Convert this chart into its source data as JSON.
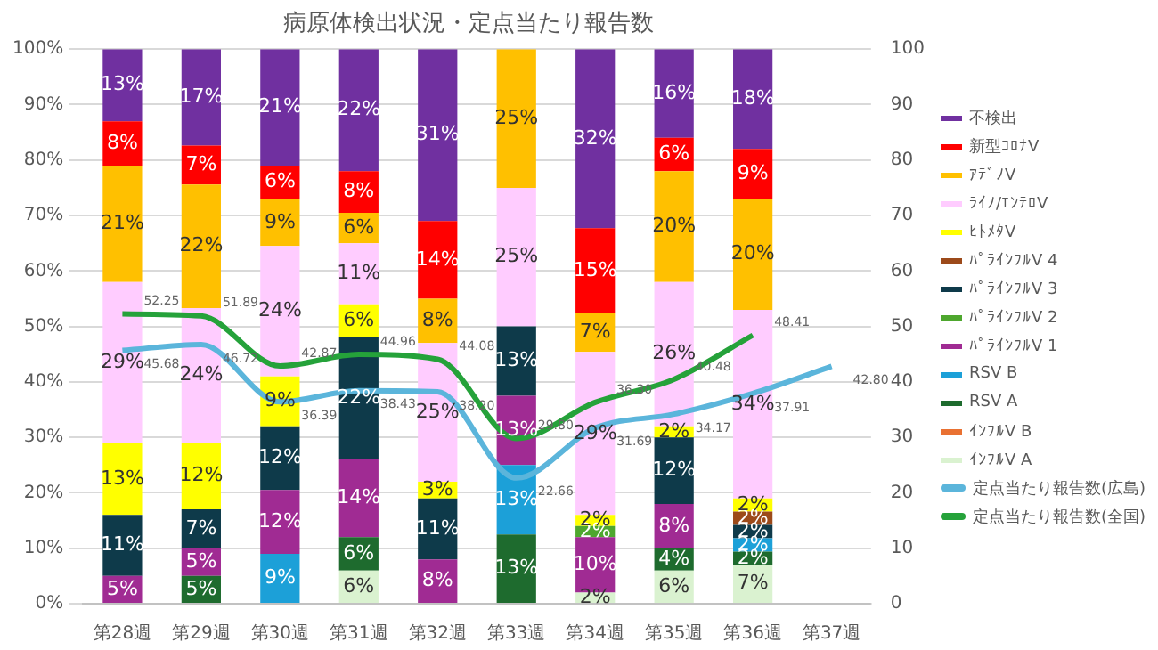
{
  "chart_data": {
    "type": "bar",
    "stacked": true,
    "title": "病原体検出状況・定点当たり報告数",
    "categories": [
      "第28週",
      "第29週",
      "第30週",
      "第31週",
      "第32週",
      "第33週",
      "第34週",
      "第35週",
      "第36週",
      "第37週"
    ],
    "series": [
      {
        "name": "ｲﾝﾌﾙV A",
        "color": "#daf2d0",
        "values": [
          null,
          null,
          null,
          6,
          null,
          null,
          2,
          6,
          7,
          null
        ],
        "value_labels": [
          null,
          null,
          null,
          "6%",
          null,
          null,
          "2%",
          "6%",
          "7%",
          null
        ]
      },
      {
        "name": "ｲﾝﾌﾙV B",
        "color": "#e97132",
        "values": [
          null,
          null,
          null,
          null,
          null,
          null,
          null,
          null,
          null,
          null
        ],
        "value_labels": [
          null,
          null,
          null,
          null,
          null,
          null,
          null,
          null,
          null,
          null
        ]
      },
      {
        "name": "RSV A",
        "color": "#1e6b2e",
        "values": [
          null,
          5,
          null,
          6,
          null,
          12.5,
          null,
          4,
          2.4,
          null
        ],
        "value_labels": [
          null,
          "5%",
          null,
          "6%",
          null,
          "13%",
          null,
          "4%",
          "2%",
          null
        ]
      },
      {
        "name": "RSV B",
        "color": "#1ca0d8",
        "values": [
          null,
          null,
          9,
          null,
          null,
          12.5,
          null,
          null,
          2.4,
          null
        ],
        "value_labels": [
          null,
          null,
          "9%",
          null,
          null,
          "13%",
          null,
          null,
          "2%",
          null
        ]
      },
      {
        "name": "ﾊﾟﾗｲﾝﾌﾙV 1",
        "color": "#a02b93",
        "values": [
          5,
          5,
          11.5,
          14,
          8,
          12.5,
          10,
          8,
          null,
          null
        ],
        "value_labels": [
          "5%",
          "5%",
          "12%",
          "14%",
          "8%",
          "13%",
          "10%",
          "8%",
          null,
          null
        ]
      },
      {
        "name": "ﾊﾟﾗｲﾝﾌﾙV 2",
        "color": "#4ea72e",
        "values": [
          null,
          null,
          null,
          null,
          null,
          null,
          2,
          null,
          null,
          null
        ],
        "value_labels": [
          null,
          null,
          null,
          null,
          null,
          null,
          "2%",
          null,
          null,
          null
        ]
      },
      {
        "name": "ﾊﾟﾗｲﾝﾌﾙV 3",
        "color": "#0e3a4a",
        "values": [
          11,
          7,
          11.5,
          22,
          11,
          12.5,
          null,
          12,
          2.4,
          null
        ],
        "value_labels": [
          "11%",
          "7%",
          "12%",
          "22%",
          "11%",
          "13%",
          null,
          "12%",
          "2%",
          null
        ]
      },
      {
        "name": "ﾊﾟﾗｲﾝﾌﾙV 4",
        "color": "#9c4a1a",
        "values": [
          null,
          null,
          null,
          null,
          null,
          null,
          null,
          null,
          2.4,
          null
        ],
        "value_labels": [
          null,
          null,
          null,
          null,
          null,
          null,
          null,
          null,
          "2%",
          null
        ]
      },
      {
        "name": "ﾋﾄﾒﾀV",
        "color": "#ffff00",
        "values": [
          13,
          12,
          9,
          6,
          3,
          null,
          2,
          2,
          2.4,
          null
        ],
        "value_labels": [
          "13%",
          "12%",
          "9%",
          "6%",
          "3%",
          null,
          "2%",
          "2%",
          "2%",
          null
        ]
      },
      {
        "name": "ﾗｲﾉ/ｴﾝﾃﾛV",
        "color": "#ffccff",
        "values": [
          29,
          24.3,
          23.5,
          11,
          25,
          25,
          29.4,
          26,
          34,
          null
        ],
        "value_labels": [
          "29%",
          "24%",
          "24%",
          "11%",
          "25%",
          "25%",
          "29%",
          "26%",
          "34%",
          null
        ]
      },
      {
        "name": "ｱﾃﾞﾉV",
        "color": "#ffc000",
        "values": [
          21,
          22.3,
          8.5,
          5.5,
          8,
          25,
          7,
          20,
          20,
          null
        ],
        "value_labels": [
          "21%",
          "22%",
          "9%",
          "6%",
          "8%",
          "25%",
          "7%",
          "20%",
          "20%",
          null
        ]
      },
      {
        "name": "新型ｺﾛﾅV",
        "color": "#ff0000",
        "values": [
          8,
          7,
          6,
          7.5,
          14,
          null,
          15.3,
          6,
          9,
          null
        ],
        "value_labels": [
          "8%",
          "7%",
          "6%",
          "8%",
          "14%",
          null,
          "15%",
          "6%",
          "9%",
          null
        ]
      },
      {
        "name": "不検出",
        "color": "#7030a0",
        "values": [
          13,
          17.4,
          21,
          22,
          31,
          null,
          32.3,
          16,
          18,
          null
        ],
        "value_labels": [
          "13%",
          "17%",
          "21%",
          "22%",
          "31%",
          null,
          "32%",
          "16%",
          "18%",
          null
        ]
      },
      {
        "name": "定点当たり報告数(広島)",
        "type": "line",
        "axis": "y2",
        "color": "#5bb5db",
        "values": [
          45.68,
          46.72,
          36.39,
          38.43,
          38.2,
          22.66,
          31.69,
          34.17,
          37.91,
          42.8
        ],
        "value_labels": [
          "45.68",
          "46.72",
          "36.39",
          "38.43",
          "38.20",
          "22.66",
          "31.69",
          "34.17",
          "37.91",
          "42.80"
        ]
      },
      {
        "name": "定点当たり報告数(全国)",
        "type": "line",
        "axis": "y2",
        "color": "#25a23a",
        "values": [
          52.25,
          51.89,
          42.87,
          44.96,
          44.08,
          29.8,
          36.3,
          40.48,
          48.41,
          null
        ],
        "value_labels": [
          "52.25",
          "51.89",
          "42.87",
          "44.96",
          "44.08",
          "29.80",
          "36.30",
          "40.48",
          "48.41",
          null
        ]
      }
    ],
    "ylim": [
      0,
      100
    ],
    "yticks": [
      {
        "value": 0,
        "label": "0%"
      },
      {
        "value": 10,
        "label": "10%"
      },
      {
        "value": 20,
        "label": "20%"
      },
      {
        "value": 30,
        "label": "30%"
      },
      {
        "value": 40,
        "label": "40%"
      },
      {
        "value": 50,
        "label": "50%"
      },
      {
        "value": 60,
        "label": "60%"
      },
      {
        "value": 70,
        "label": "70%"
      },
      {
        "value": 80,
        "label": "80%"
      },
      {
        "value": 90,
        "label": "90%"
      },
      {
        "value": 100,
        "label": "100%"
      }
    ],
    "y2lim": [
      0,
      100
    ],
    "y2ticks": [
      0,
      10,
      20,
      30,
      40,
      50,
      60,
      70,
      80,
      90,
      100
    ],
    "grid": "y",
    "legend": "right",
    "marker": "none"
  }
}
